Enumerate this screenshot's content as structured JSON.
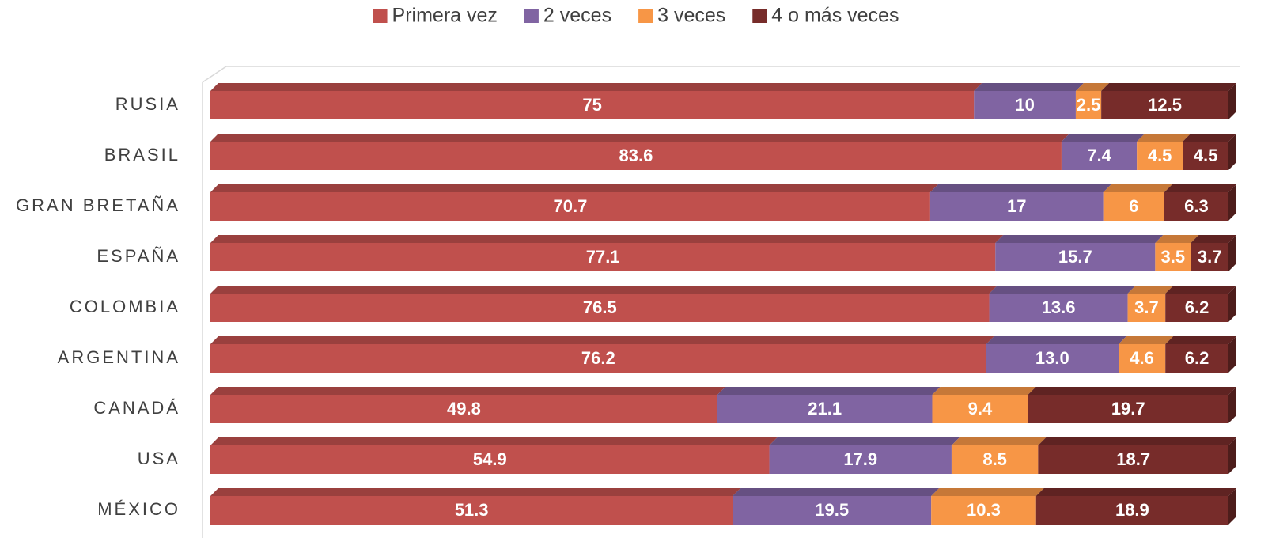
{
  "chart_data": {
    "type": "stacked-bar-horizontal-3d",
    "categories": [
      "RUSIA",
      "BRASIL",
      "GRAN BRETAÑA",
      "ESPAÑA",
      "COLOMBIA",
      "ARGENTINA",
      "CANADÁ",
      "USA",
      "MÉXICO"
    ],
    "series": [
      {
        "name": "Primera vez",
        "color": "#c0504d",
        "values": [
          75,
          83.6,
          70.7,
          77.1,
          76.5,
          76.2,
          49.8,
          54.9,
          51.3
        ]
      },
      {
        "name": "2 veces",
        "color": "#8064a2",
        "values": [
          10,
          7.4,
          17,
          15.7,
          13.6,
          13.0,
          21.1,
          17.9,
          19.5
        ],
        "value_labels": [
          "10",
          "7.4",
          "17",
          "15.7",
          "13.6",
          "13.0",
          "21.1",
          "17.9",
          "19.5"
        ]
      },
      {
        "name": "3 veces",
        "color": "#f79646",
        "values": [
          2.5,
          4.5,
          6,
          3.5,
          3.7,
          4.6,
          9.4,
          8.5,
          10.3
        ]
      },
      {
        "name": "4 o más veces",
        "color": "#772c2a",
        "values": [
          12.5,
          4.5,
          6.3,
          3.7,
          6.2,
          6.2,
          19.7,
          18.7,
          18.9
        ]
      }
    ],
    "xlim": [
      0,
      100
    ],
    "legend": "top"
  }
}
